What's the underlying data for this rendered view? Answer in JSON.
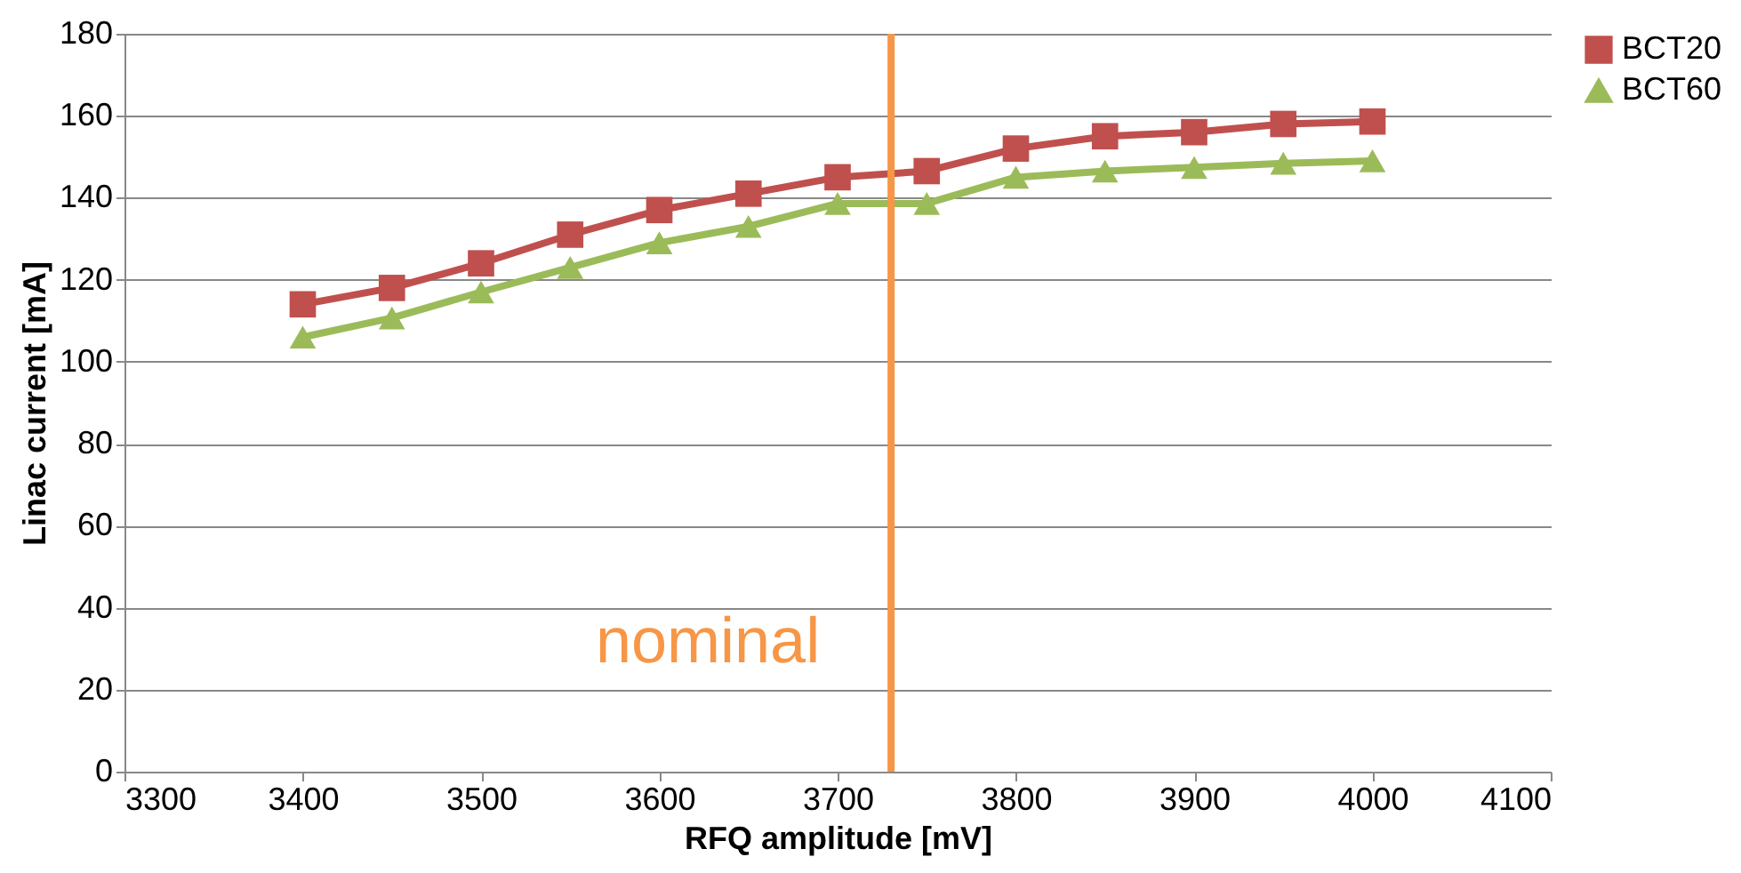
{
  "chart_data": {
    "type": "line",
    "xlabel": "RFQ amplitude [mV]",
    "ylabel": "Linac current [mA]",
    "x": [
      3400,
      3450,
      3500,
      3550,
      3600,
      3650,
      3700,
      3750,
      3800,
      3850,
      3900,
      3950,
      4000
    ],
    "series": [
      {
        "name": "BCT20",
        "color": "#c0504d",
        "marker": "square",
        "values": [
          114,
          118,
          124,
          131,
          137,
          141,
          145,
          146.5,
          152,
          155,
          156,
          158,
          158.6
        ]
      },
      {
        "name": "BCT60",
        "color": "#9bbb59",
        "marker": "triangle",
        "values": [
          106,
          110.7,
          117,
          123,
          129,
          133,
          138.6,
          138.6,
          145,
          146.5,
          147.4,
          148.4,
          149
        ]
      }
    ],
    "xlim": [
      3300,
      4100
    ],
    "xticks": [
      3300,
      3400,
      3500,
      3600,
      3700,
      3800,
      3900,
      4000,
      4100
    ],
    "ylim": [
      0,
      180
    ],
    "yticks": [
      0,
      20,
      40,
      60,
      80,
      100,
      120,
      140,
      160,
      180
    ],
    "grid": "y",
    "legend": "right",
    "line_style": "solid",
    "ref_lines": [
      {
        "axis": "x",
        "value": 3730,
        "label": "nominal",
        "color": "#f79646"
      }
    ]
  }
}
